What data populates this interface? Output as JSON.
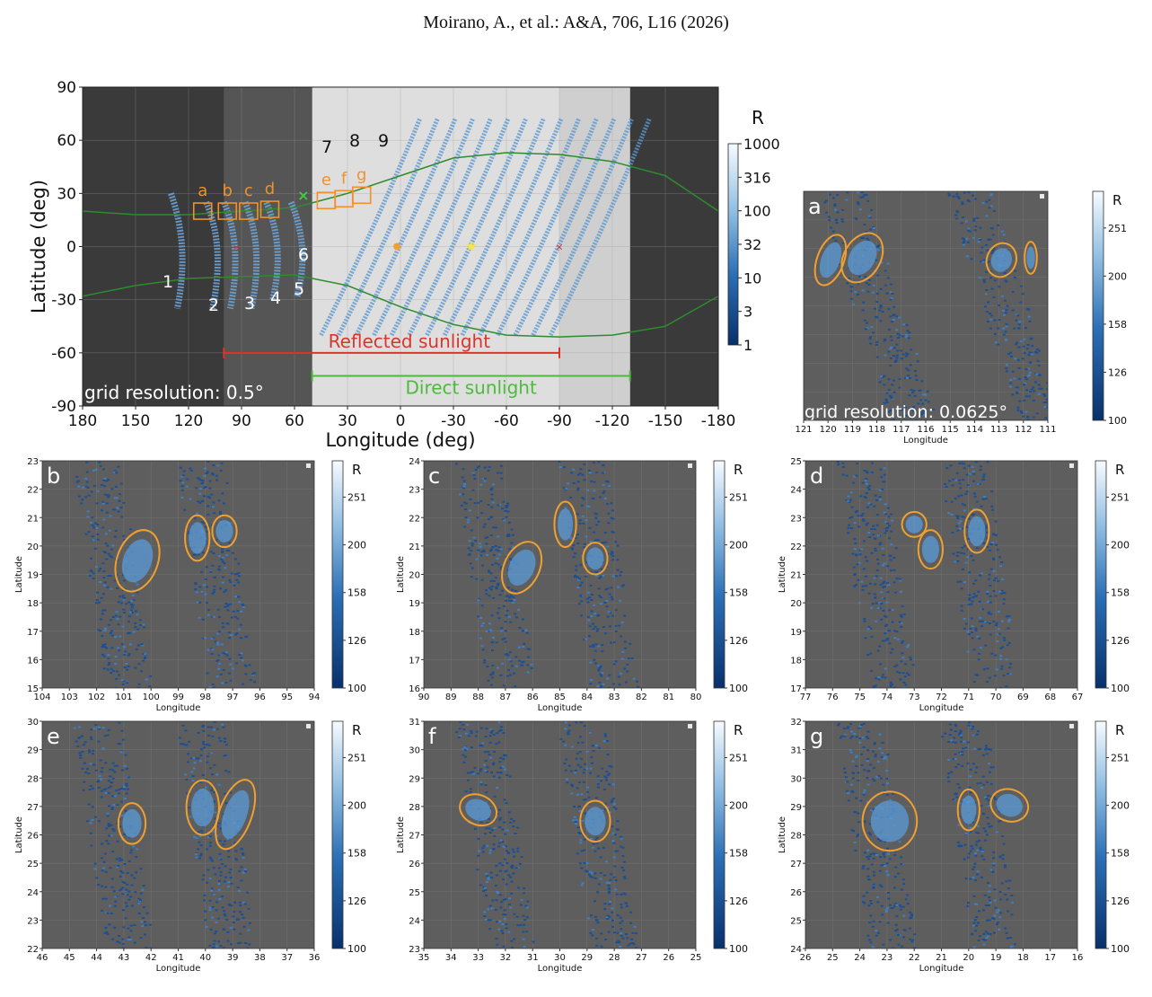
{
  "header": {
    "citation": "Moirano, A., et al.: A&A, 706, L16 (2026)"
  },
  "main": {
    "ylabel": "Latitude (deg)",
    "xlabel": "Longitude (deg)",
    "yticks": [
      "90",
      "60",
      "30",
      "0",
      "-30",
      "-60",
      "-90"
    ],
    "xticks": [
      "180",
      "150",
      "120",
      "90",
      "60",
      "30",
      "0",
      "-30",
      "-60",
      "-90",
      "-120",
      "-150",
      "-180"
    ],
    "grid_note": "grid resolution: 0.5°",
    "reflected_label": "Reflected sunlight",
    "direct_label": "Direct sunlight",
    "colorbar_title": "R",
    "colorbar_ticks": [
      "1000",
      "316",
      "100",
      "32",
      "10",
      "3",
      "1"
    ],
    "scale": "log",
    "band_numbers": [
      "1",
      "2",
      "3",
      "4",
      "5",
      "6",
      "7",
      "8",
      "9"
    ],
    "box_letters": [
      "a",
      "b",
      "c",
      "d",
      "e",
      "f",
      "g"
    ],
    "colors": {
      "reflected": "#d9362b",
      "direct": "#4cbb3c",
      "box": "#f0922b",
      "terminator": "#2e8b2e"
    }
  },
  "panels": [
    {
      "id": "a",
      "xlabel": "Longitude",
      "xticks": [
        "121",
        "120",
        "119",
        "118",
        "117",
        "116",
        "115",
        "114",
        "113",
        "112",
        "111"
      ],
      "yticks": [],
      "note": "grid resolution: 0.0625°",
      "cb_title": "R",
      "cb_ticks": [
        "251",
        "200",
        "158",
        "126",
        "100"
      ]
    },
    {
      "id": "b",
      "xlabel": "Longitude",
      "ylabel": "Latitude",
      "xticks": [
        "104",
        "103",
        "102",
        "101",
        "100",
        "99",
        "98",
        "97",
        "96",
        "95",
        "94"
      ],
      "yticks": [
        "23",
        "22",
        "21",
        "20",
        "19",
        "18",
        "17",
        "16",
        "15"
      ],
      "cb_title": "R",
      "cb_ticks": [
        "251",
        "200",
        "158",
        "126",
        "100"
      ]
    },
    {
      "id": "c",
      "xlabel": "Longitude",
      "ylabel": "Latitude",
      "xticks": [
        "90",
        "89",
        "88",
        "87",
        "86",
        "85",
        "84",
        "83",
        "82",
        "81",
        "80"
      ],
      "yticks": [
        "24",
        "23",
        "22",
        "21",
        "20",
        "19",
        "18",
        "17",
        "16"
      ],
      "cb_title": "R",
      "cb_ticks": [
        "251",
        "200",
        "158",
        "126",
        "100"
      ]
    },
    {
      "id": "d",
      "xlabel": "Longitude",
      "ylabel": "Latitude",
      "xticks": [
        "77",
        "76",
        "75",
        "74",
        "73",
        "72",
        "71",
        "70",
        "69",
        "68",
        "67"
      ],
      "yticks": [
        "25",
        "24",
        "23",
        "22",
        "21",
        "20",
        "19",
        "18",
        "17"
      ],
      "cb_title": "R",
      "cb_ticks": [
        "251",
        "200",
        "158",
        "126",
        "100"
      ]
    },
    {
      "id": "e",
      "xlabel": "Longitude",
      "ylabel": "Latitude",
      "xticks": [
        "46",
        "45",
        "44",
        "43",
        "42",
        "41",
        "40",
        "39",
        "38",
        "37",
        "36"
      ],
      "yticks": [
        "30",
        "29",
        "28",
        "27",
        "26",
        "25",
        "24",
        "23",
        "22"
      ],
      "cb_title": "R",
      "cb_ticks": [
        "251",
        "200",
        "158",
        "126",
        "100"
      ]
    },
    {
      "id": "f",
      "xlabel": "Longitude",
      "ylabel": "Latitude",
      "xticks": [
        "35",
        "34",
        "33",
        "32",
        "31",
        "30",
        "29",
        "28",
        "27",
        "26",
        "25"
      ],
      "yticks": [
        "31",
        "30",
        "29",
        "28",
        "27",
        "26",
        "25",
        "24",
        "23"
      ],
      "cb_title": "R",
      "cb_ticks": [
        "251",
        "200",
        "158",
        "126",
        "100"
      ]
    },
    {
      "id": "g",
      "xlabel": "Longitude",
      "ylabel": "Latitude",
      "xticks": [
        "26",
        "25",
        "24",
        "23",
        "22",
        "21",
        "20",
        "19",
        "18",
        "17",
        "16"
      ],
      "yticks": [
        "32",
        "31",
        "30",
        "29",
        "28",
        "27",
        "26",
        "25",
        "24"
      ],
      "cb_title": "R",
      "cb_ticks": [
        "251",
        "200",
        "158",
        "126",
        "100"
      ]
    }
  ]
}
